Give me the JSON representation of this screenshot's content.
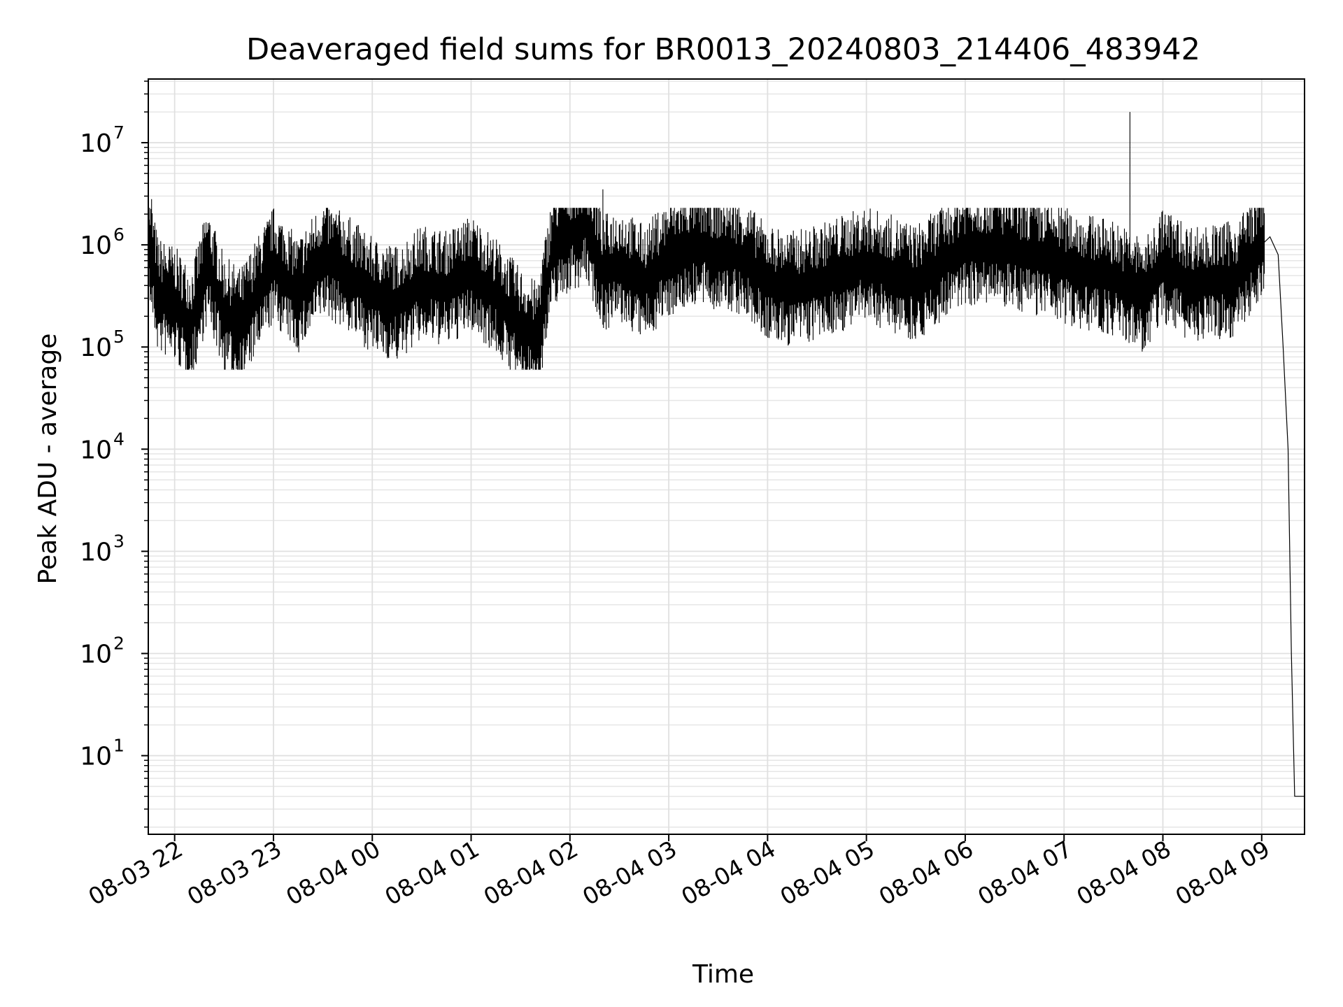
{
  "chart_data": {
    "type": "line",
    "title": "Deaveraged field sums for BR0013_20240803_214406_483942",
    "xlabel": "Time",
    "ylabel": "Peak ADU - average",
    "yscale": "log",
    "ylim": [
      1.7,
      42000000
    ],
    "xlim": [
      "2024-08-03 21:44",
      "2024-08-04 09:26"
    ],
    "grid": true,
    "line_color": "#000000",
    "x_ticks": [
      {
        "t": "2024-08-03 22:00",
        "label": "08-03 22"
      },
      {
        "t": "2024-08-03 23:00",
        "label": "08-03 23"
      },
      {
        "t": "2024-08-04 00:00",
        "label": "08-04 00"
      },
      {
        "t": "2024-08-04 01:00",
        "label": "08-04 01"
      },
      {
        "t": "2024-08-04 02:00",
        "label": "08-04 02"
      },
      {
        "t": "2024-08-04 03:00",
        "label": "08-04 03"
      },
      {
        "t": "2024-08-04 04:00",
        "label": "08-04 04"
      },
      {
        "t": "2024-08-04 05:00",
        "label": "08-04 05"
      },
      {
        "t": "2024-08-04 06:00",
        "label": "08-04 06"
      },
      {
        "t": "2024-08-04 07:00",
        "label": "08-04 07"
      },
      {
        "t": "2024-08-04 08:00",
        "label": "08-04 08"
      },
      {
        "t": "2024-08-04 09:00",
        "label": "08-04 09"
      }
    ],
    "y_ticks": [
      {
        "exp": 1,
        "base": "10",
        "sup": "1"
      },
      {
        "exp": 2,
        "base": "10",
        "sup": "2"
      },
      {
        "exp": 3,
        "base": "10",
        "sup": "3"
      },
      {
        "exp": 4,
        "base": "10",
        "sup": "4"
      },
      {
        "exp": 5,
        "base": "10",
        "sup": "5"
      },
      {
        "exp": 6,
        "base": "10",
        "sup": "6"
      },
      {
        "exp": 7,
        "base": "10",
        "sup": "7"
      }
    ],
    "series": [
      {
        "x": [
          "2024-08-03 21:44",
          "2024-08-03 21:50",
          "2024-08-03 22:00",
          "2024-08-03 22:10",
          "2024-08-03 22:20",
          "2024-08-03 22:30",
          "2024-08-03 22:40",
          "2024-08-03 22:50",
          "2024-08-03 23:00",
          "2024-08-03 23:15",
          "2024-08-03 23:30",
          "2024-08-03 23:45",
          "2024-08-04 00:00",
          "2024-08-04 00:15",
          "2024-08-04 00:30",
          "2024-08-04 00:45",
          "2024-08-04 01:00",
          "2024-08-04 01:15",
          "2024-08-04 01:30",
          "2024-08-04 01:40",
          "2024-08-04 01:50",
          "2024-08-04 02:00",
          "2024-08-04 02:10",
          "2024-08-04 02:20",
          "2024-08-04 02:30",
          "2024-08-04 02:45",
          "2024-08-04 03:00",
          "2024-08-04 03:15",
          "2024-08-04 03:30",
          "2024-08-04 03:45",
          "2024-08-04 04:00",
          "2024-08-04 04:15",
          "2024-08-04 04:30",
          "2024-08-04 04:45",
          "2024-08-04 05:00",
          "2024-08-04 05:15",
          "2024-08-04 05:30",
          "2024-08-04 05:45",
          "2024-08-04 06:00",
          "2024-08-04 06:15",
          "2024-08-04 06:30",
          "2024-08-04 06:45",
          "2024-08-04 07:00",
          "2024-08-04 07:15",
          "2024-08-04 07:30",
          "2024-08-04 07:40",
          "2024-08-04 07:50",
          "2024-08-04 08:00",
          "2024-08-04 08:15",
          "2024-08-04 08:30",
          "2024-08-04 08:45",
          "2024-08-04 09:00",
          "2024-08-04 09:05",
          "2024-08-04 09:10",
          "2024-08-04 09:13",
          "2024-08-04 09:16",
          "2024-08-04 09:18",
          "2024-08-04 09:20",
          "2024-08-04 09:26"
        ],
        "y": [
          1000000,
          300000,
          250000,
          150000,
          600000,
          200000,
          150000,
          300000,
          600000,
          300000,
          700000,
          500000,
          300000,
          250000,
          400000,
          350000,
          500000,
          300000,
          150000,
          110000,
          900000,
          1200000,
          1500000,
          500000,
          600000,
          400000,
          700000,
          900000,
          800000,
          700000,
          400000,
          350000,
          400000,
          500000,
          600000,
          500000,
          400000,
          600000,
          900000,
          900000,
          800000,
          700000,
          600000,
          500000,
          450000,
          350000,
          300000,
          600000,
          400000,
          400000,
          450000,
          1000000,
          1200000,
          800000,
          100000,
          10000,
          100,
          4,
          4
        ]
      }
    ]
  }
}
